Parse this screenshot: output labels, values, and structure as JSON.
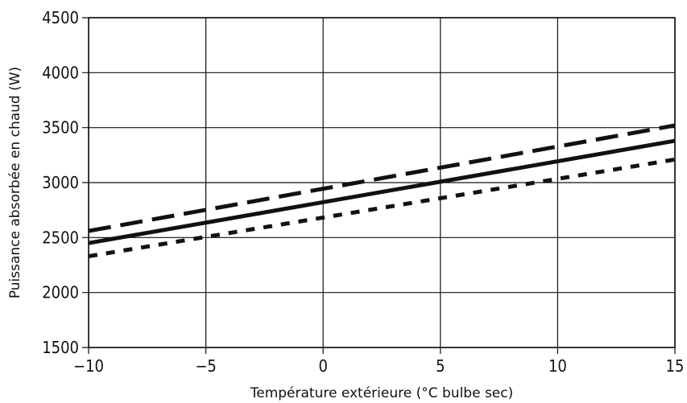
{
  "chart_data": {
    "type": "line",
    "title": "",
    "xlabel": "Température extérieure (°C bulbe sec)",
    "ylabel": "Puissance absorbée en chaud (W)",
    "xlim": [
      -10,
      15
    ],
    "ylim": [
      1500,
      4500
    ],
    "x_ticks": [
      -10,
      -5,
      0,
      5,
      10,
      15
    ],
    "x_tick_labels": [
      "−10",
      "−5",
      "0",
      "5",
      "10",
      "15"
    ],
    "y_ticks": [
      1500,
      2000,
      2500,
      3000,
      3500,
      4000,
      4500
    ],
    "y_tick_labels": [
      "1500",
      "2000",
      "2500",
      "3000",
      "3500",
      "4000",
      "4500"
    ],
    "grid": true,
    "legend": "none",
    "series": [
      {
        "style": "dashed",
        "color": "#111111",
        "x": [
          -10,
          15
        ],
        "y": [
          2560,
          3520
        ]
      },
      {
        "style": "solid",
        "color": "#111111",
        "x": [
          -10,
          15
        ],
        "y": [
          2450,
          3380
        ]
      },
      {
        "style": "dotted",
        "color": "#111111",
        "x": [
          -10,
          15
        ],
        "y": [
          2330,
          3210
        ]
      }
    ]
  }
}
